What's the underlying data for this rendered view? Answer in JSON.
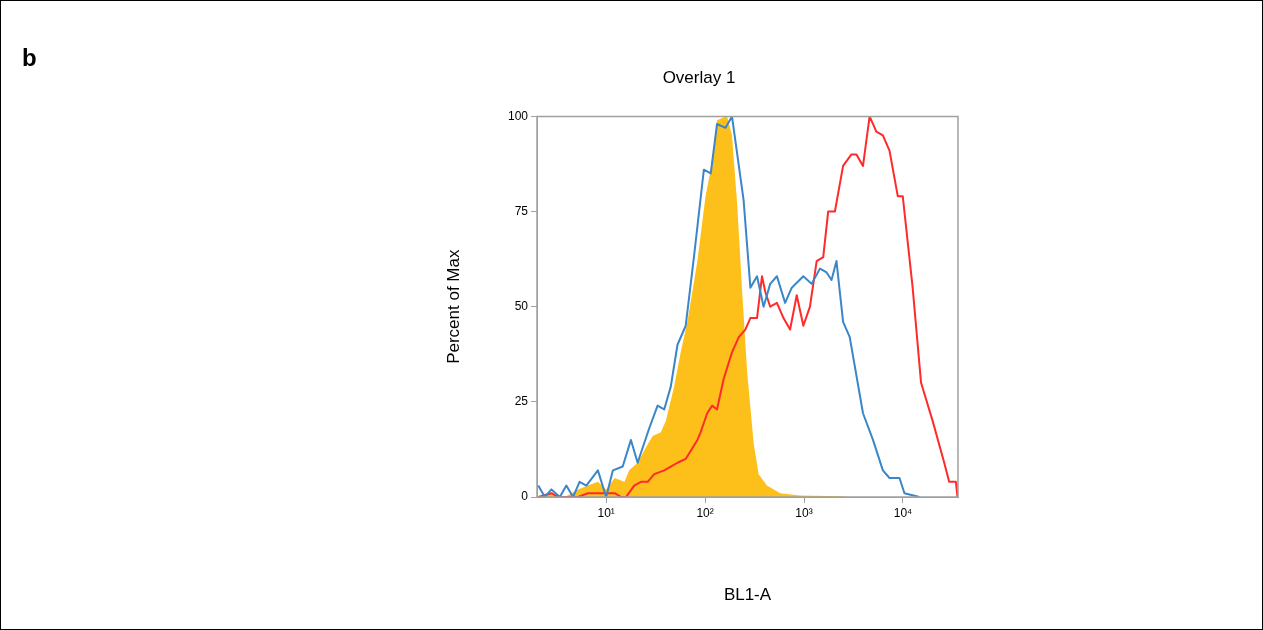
{
  "chart_data": {
    "type": "line",
    "title": "Overlay 1",
    "xlabel": "BL1-A",
    "ylabel": "Percent of Max",
    "annotations": [
      "b"
    ],
    "log": "x",
    "marker": "none",
    "xlim": [
      2,
      36000
    ],
    "xticks": [
      {
        "value": 10,
        "label": "10¹"
      },
      {
        "value": 100,
        "label": "10²"
      },
      {
        "value": 1000,
        "label": "10³"
      },
      {
        "value": 10000,
        "label": "10⁴"
      }
    ],
    "ylim": [
      0,
      100
    ],
    "yticks": [
      0,
      25,
      50,
      75,
      100
    ],
    "series": [
      {
        "type": "area",
        "color": "#fdbf1a",
        "x": [
          2.06,
          2.8,
          3.81,
          5.2,
          6.54,
          8.25,
          10,
          12.2,
          15.3,
          17.1,
          20.8,
          25.2,
          29.5,
          35.7,
          40.1,
          48.6,
          56.7,
          66.2,
          83.6,
          101,
          118,
          132,
          161,
          167,
          187,
          211,
          237,
          266,
          310,
          348,
          422,
          574,
          912,
          2301,
          2897
        ],
        "values": [
          0,
          1,
          0,
          2,
          3,
          4,
          2,
          5,
          4,
          7,
          9,
          13,
          16,
          17,
          20,
          29,
          38,
          46,
          62,
          79,
          88,
          99,
          100,
          100,
          95,
          77,
          54,
          33,
          14,
          6,
          3,
          1,
          0.4,
          0.2,
          0
        ]
      },
      {
        "type": "line",
        "color": "#3a86c8",
        "x": [
          2.06,
          2.4,
          2.8,
          3.4,
          3.96,
          4.63,
          5.39,
          6.3,
          8.25,
          10,
          11.7,
          14.7,
          17.8,
          20.8,
          27.2,
          33.1,
          38.6,
          45,
          52.6,
          63.7,
          77.1,
          97.2,
          114,
          132,
          161,
          187,
          245,
          287,
          335,
          390,
          455,
          532,
          644,
          752,
          984,
          1194,
          1449,
          1690,
          1897,
          2128,
          2483,
          2897,
          3945,
          4977,
          6266,
          7311,
          9226,
          10350,
          14650
        ],
        "values": [
          3,
          0,
          2,
          0,
          3,
          0,
          4,
          3,
          7,
          0,
          7,
          8,
          15,
          9,
          18,
          24,
          23,
          29,
          40,
          45,
          63,
          86,
          85,
          98,
          97,
          100,
          78,
          55,
          58,
          50,
          56,
          58,
          51,
          55,
          58,
          56,
          60,
          59,
          57,
          62,
          46,
          42,
          22,
          15,
          7,
          5,
          5,
          1,
          0
        ]
      },
      {
        "type": "line",
        "color": "#ff2a2a",
        "x": [
          2.06,
          2.8,
          3.27,
          5.2,
          6.54,
          7.9,
          10.4,
          12.2,
          14.2,
          15.9,
          19.2,
          22.5,
          26.3,
          30.6,
          38.6,
          45,
          52.6,
          63.7,
          83.6,
          90.1,
          105,
          118,
          132,
          154,
          187,
          219,
          255,
          287,
          335,
          376,
          405,
          455,
          532,
          620,
          723,
          844,
          984,
          1148,
          1342,
          1563,
          1754,
          2051,
          2483,
          3013,
          3388,
          3945,
          4603,
          5383,
          6266,
          7311,
          8872,
          9954,
          12530,
          15240,
          19950,
          26120,
          29310,
          34280,
          35560
        ],
        "values": [
          0,
          1,
          0,
          0,
          1,
          1,
          1,
          1,
          0,
          0,
          3,
          4,
          4,
          6,
          7,
          8,
          9,
          10,
          15,
          17,
          22,
          24,
          23,
          31,
          38,
          42,
          44,
          47,
          47,
          58,
          54,
          50,
          51,
          47,
          44,
          53,
          45,
          50,
          62,
          63,
          75,
          75,
          87,
          90,
          90,
          87,
          100,
          96,
          95,
          91,
          79,
          79,
          55,
          30,
          20,
          9,
          4,
          4,
          0
        ]
      }
    ]
  }
}
